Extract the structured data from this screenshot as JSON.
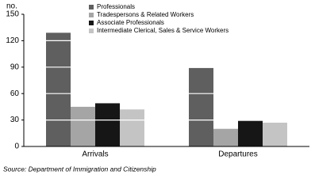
{
  "chart_data": {
    "type": "bar",
    "y_label": "no.",
    "categories": [
      "Arrivals",
      "Departures"
    ],
    "series": [
      {
        "name": "Professionals",
        "color": "#5f5f5f",
        "values": [
          129,
          89
        ]
      },
      {
        "name": "Tradespersons & Related Workers",
        "color": "#a5a5a5",
        "values": [
          45,
          20
        ]
      },
      {
        "name": "Associate Professionals",
        "color": "#161616",
        "values": [
          49,
          29
        ]
      },
      {
        "name": "Intermediate Clerical, Sales & Service Workers",
        "color": "#c4c4c4",
        "values": [
          42,
          27
        ]
      }
    ],
    "ylim": [
      0,
      150
    ],
    "yticks": [
      0,
      30,
      60,
      90,
      120,
      150
    ],
    "grid": true,
    "source": "Source: Department of Immigration and Citizenship"
  }
}
